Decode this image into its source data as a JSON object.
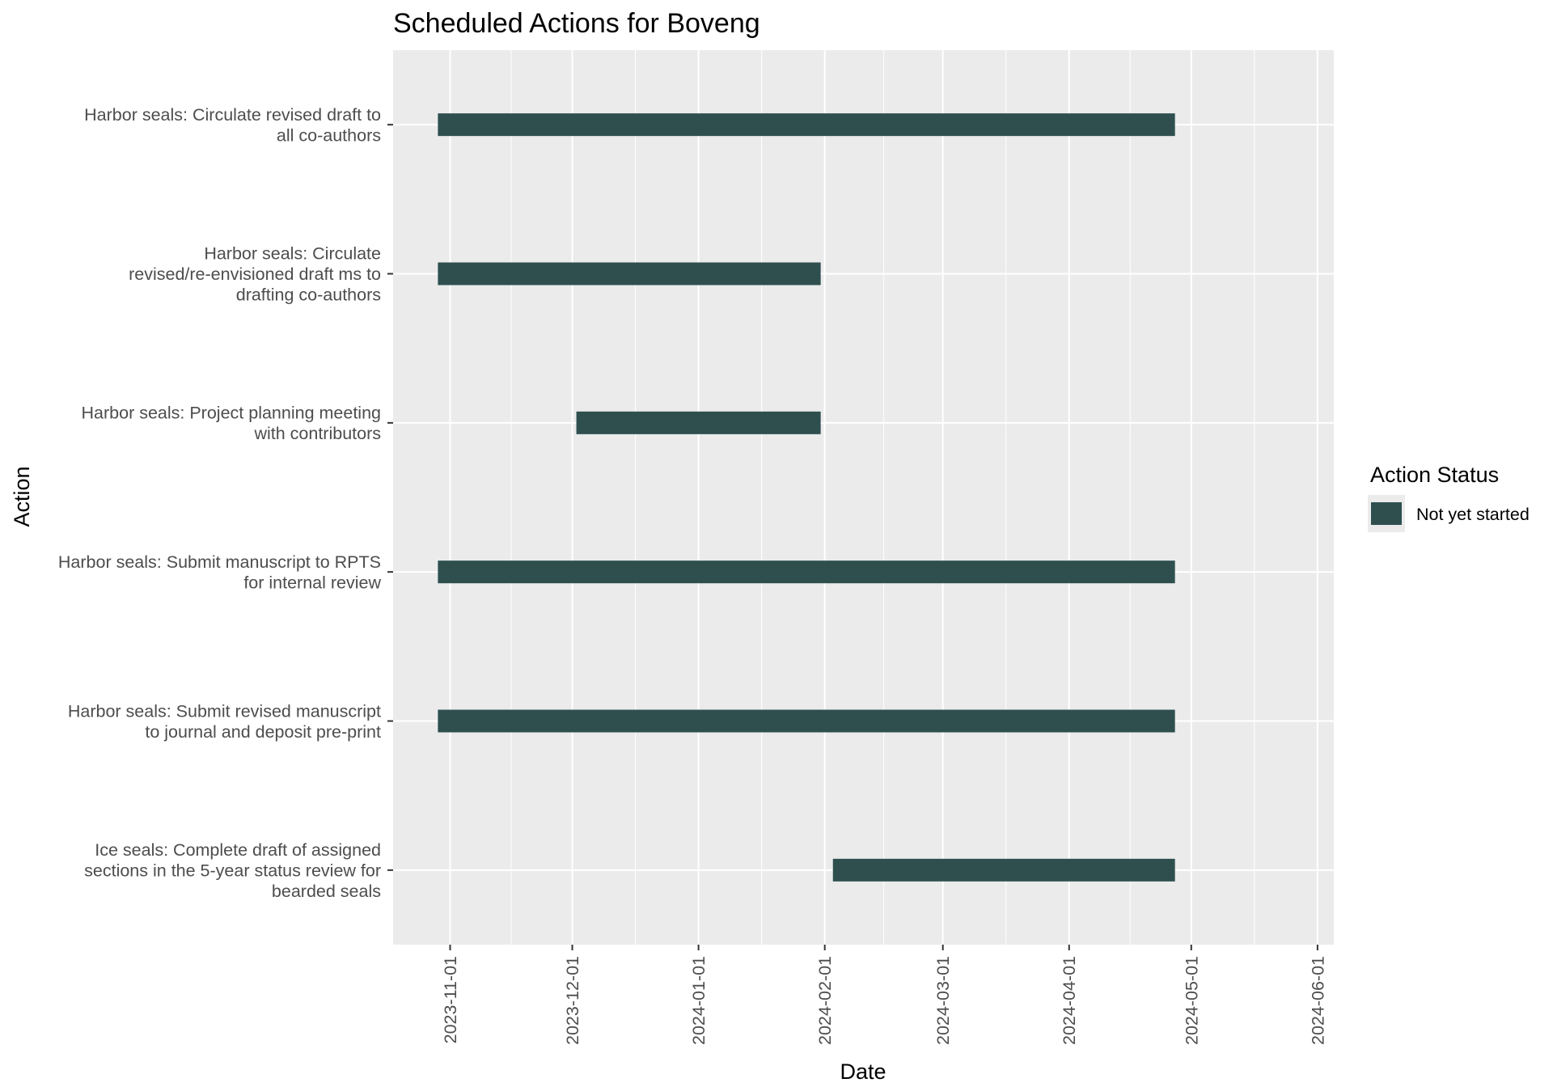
{
  "chart_data": {
    "type": "gantt",
    "title": "Scheduled Actions for Boveng",
    "xlabel": "Date",
    "ylabel": "Action",
    "xlim": [
      "2023-10-18",
      "2024-06-05"
    ],
    "x_ticks": [
      "2023-11-01",
      "2023-12-01",
      "2024-01-01",
      "2024-02-01",
      "2024-03-01",
      "2024-04-01",
      "2024-05-01",
      "2024-06-01"
    ],
    "grid": true,
    "legend": {
      "title": "Action Status",
      "position": "right",
      "entries": [
        {
          "label": "Not yet started",
          "color": "#2f4f4f"
        }
      ]
    },
    "tasks": [
      {
        "label_lines": [
          "Harbor seals: Circulate revised draft to",
          "all co-authors"
        ],
        "start": "2023-10-29",
        "end": "2024-04-27",
        "status": "Not yet started"
      },
      {
        "label_lines": [
          "Harbor seals: Circulate",
          "revised/re-envisioned draft ms to",
          "drafting co-authors"
        ],
        "start": "2023-10-29",
        "end": "2024-01-31",
        "status": "Not yet started"
      },
      {
        "label_lines": [
          "Harbor seals: Project planning meeting",
          "with contributors"
        ],
        "start": "2023-12-02",
        "end": "2024-01-31",
        "status": "Not yet started"
      },
      {
        "label_lines": [
          "Harbor seals: Submit manuscript to RPTS",
          "for internal review"
        ],
        "start": "2023-10-29",
        "end": "2024-04-27",
        "status": "Not yet started"
      },
      {
        "label_lines": [
          "Harbor seals: Submit revised manuscript",
          "to journal and deposit pre-print"
        ],
        "start": "2023-10-29",
        "end": "2024-04-27",
        "status": "Not yet started"
      },
      {
        "label_lines": [
          "Ice seals: Complete draft of assigned",
          "sections in the 5-year status review for",
          "bearded seals"
        ],
        "start": "2024-02-03",
        "end": "2024-04-27",
        "status": "Not yet started"
      }
    ],
    "colors": {
      "panel": "#ebebeb",
      "grid": "#ffffff",
      "bar": "#2f4f4f"
    }
  }
}
